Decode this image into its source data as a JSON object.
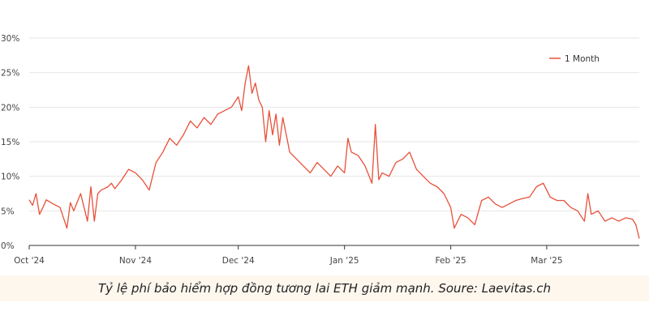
{
  "chart_data": {
    "type": "line",
    "title": "",
    "xlabel": "",
    "ylabel": "",
    "ylim": [
      0,
      30
    ],
    "y_ticks": [
      "0%",
      "5%",
      "10%",
      "15%",
      "20%",
      "25%",
      "30%"
    ],
    "y_tick_values": [
      0,
      5,
      10,
      15,
      20,
      25,
      30
    ],
    "x_ticks": [
      "Oct '24",
      "Nov '24",
      "Dec '24",
      "Jan '25",
      "Feb '25",
      "Mar '25"
    ],
    "x_tick_dates": [
      "2024-10-01",
      "2024-11-01",
      "2024-12-01",
      "2025-01-01",
      "2025-02-01",
      "2025-03-01"
    ],
    "xlim": [
      "2024-10-01",
      "2025-03-28"
    ],
    "grid": "horizontal",
    "legend_position": "top-right",
    "series": [
      {
        "name": "1 Month",
        "color": "#e8503a",
        "x": [
          "2024-10-01",
          "2024-10-02",
          "2024-10-03",
          "2024-10-04",
          "2024-10-05",
          "2024-10-06",
          "2024-10-08",
          "2024-10-10",
          "2024-10-12",
          "2024-10-13",
          "2024-10-14",
          "2024-10-16",
          "2024-10-18",
          "2024-10-19",
          "2024-10-20",
          "2024-10-21",
          "2024-10-22",
          "2024-10-24",
          "2024-10-25",
          "2024-10-26",
          "2024-10-28",
          "2024-10-30",
          "2024-11-01",
          "2024-11-03",
          "2024-11-05",
          "2024-11-07",
          "2024-11-09",
          "2024-11-11",
          "2024-11-13",
          "2024-11-15",
          "2024-11-17",
          "2024-11-19",
          "2024-11-21",
          "2024-11-23",
          "2024-11-25",
          "2024-11-27",
          "2024-11-29",
          "2024-12-01",
          "2024-12-02",
          "2024-12-03",
          "2024-12-04",
          "2024-12-05",
          "2024-12-06",
          "2024-12-07",
          "2024-12-08",
          "2024-12-09",
          "2024-12-10",
          "2024-12-11",
          "2024-12-12",
          "2024-12-13",
          "2024-12-14",
          "2024-12-15",
          "2024-12-16",
          "2024-12-18",
          "2024-12-20",
          "2024-12-22",
          "2024-12-24",
          "2024-12-26",
          "2024-12-28",
          "2024-12-30",
          "2025-01-01",
          "2025-01-02",
          "2025-01-03",
          "2025-01-05",
          "2025-01-07",
          "2025-01-09",
          "2025-01-10",
          "2025-01-11",
          "2025-01-12",
          "2025-01-14",
          "2025-01-16",
          "2025-01-18",
          "2025-01-20",
          "2025-01-22",
          "2025-01-24",
          "2025-01-26",
          "2025-01-28",
          "2025-01-30",
          "2025-01-31",
          "2025-02-01",
          "2025-02-02",
          "2025-02-04",
          "2025-02-06",
          "2025-02-08",
          "2025-02-10",
          "2025-02-12",
          "2025-02-14",
          "2025-02-16",
          "2025-02-18",
          "2025-02-20",
          "2025-02-22",
          "2025-02-24",
          "2025-02-26",
          "2025-02-28",
          "2025-03-02",
          "2025-03-04",
          "2025-03-06",
          "2025-03-08",
          "2025-03-10",
          "2025-03-12",
          "2025-03-13",
          "2025-03-14",
          "2025-03-16",
          "2025-03-18",
          "2025-03-20",
          "2025-03-22",
          "2025-03-24",
          "2025-03-26",
          "2025-03-27",
          "2025-03-28"
        ],
        "values": [
          6.6,
          5.8,
          7.5,
          4.5,
          5.5,
          6.6,
          6.0,
          5.5,
          2.5,
          6.2,
          5.0,
          7.5,
          3.5,
          8.5,
          3.5,
          7.5,
          8.0,
          8.5,
          9.0,
          8.2,
          9.5,
          11.0,
          10.5,
          9.5,
          8.0,
          12.0,
          13.5,
          15.5,
          14.5,
          16.0,
          18.0,
          17.0,
          18.5,
          17.5,
          19.0,
          19.5,
          20.0,
          21.5,
          19.5,
          23.5,
          26.0,
          22.0,
          23.5,
          21.0,
          20.0,
          15.0,
          19.5,
          16.0,
          19.0,
          14.5,
          18.5,
          16.0,
          13.5,
          12.5,
          11.5,
          10.5,
          12.0,
          11.0,
          10.0,
          11.5,
          10.5,
          15.5,
          13.5,
          13.0,
          11.5,
          9.0,
          17.5,
          9.5,
          10.5,
          10.0,
          12.0,
          12.5,
          13.5,
          11.0,
          10.0,
          9.0,
          8.5,
          7.5,
          6.5,
          5.5,
          2.5,
          4.5,
          4.0,
          3.0,
          6.5,
          7.0,
          6.0,
          5.5,
          6.0,
          6.5,
          6.8,
          7.0,
          8.5,
          9.0,
          7.0,
          6.5,
          6.5,
          5.5,
          5.0,
          3.5,
          7.5,
          4.5,
          5.0,
          3.5,
          4.0,
          3.5,
          4.0,
          3.8,
          3.0,
          1.0
        ]
      }
    ]
  },
  "caption": "Tỷ lệ phí bảo hiểm hợp đồng tương lai ETH giảm mạnh. Soure: Laevitas.ch"
}
